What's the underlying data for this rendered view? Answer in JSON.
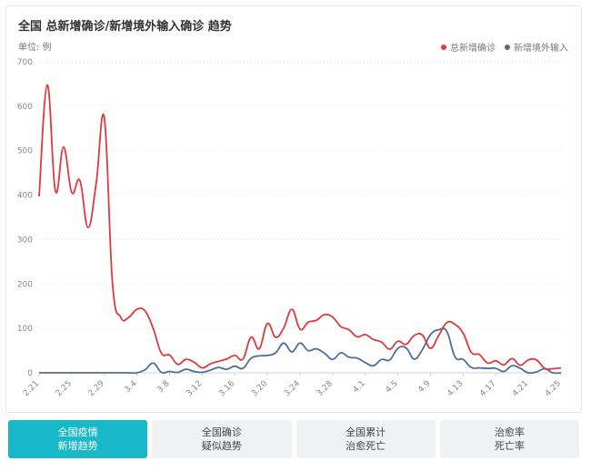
{
  "header": {
    "title": "全国 总新增确诊/新增境外输入确诊 趋势",
    "unit": "单位: 例"
  },
  "legend": [
    {
      "name": "总新增确诊",
      "color": "#e0393e"
    },
    {
      "name": "新增境外输入",
      "color": "#4e6e9a"
    }
  ],
  "tabs": [
    {
      "line1": "全国疫情",
      "line2": "新增趋势",
      "active": true
    },
    {
      "line1": "全国确诊",
      "line2": "疑似趋势",
      "active": false
    },
    {
      "line1": "全国累计",
      "line2": "治愈死亡",
      "active": false
    },
    {
      "line1": "治愈率",
      "line2": "死亡率",
      "active": false
    }
  ],
  "chart_data": {
    "type": "line",
    "x": [
      "2.21",
      "2.22",
      "2.23",
      "2.24",
      "2.25",
      "2.26",
      "2.27",
      "2.28",
      "2.29",
      "3.1",
      "3.2",
      "3.3",
      "3.4",
      "3.5",
      "3.6",
      "3.7",
      "3.8",
      "3.9",
      "3.10",
      "3.11",
      "3.12",
      "3.13",
      "3.14",
      "3.15",
      "3.16",
      "3.17",
      "3.18",
      "3.19",
      "3.20",
      "3.21",
      "3.22",
      "3.23",
      "3.24",
      "3.25",
      "3.26",
      "3.27",
      "3.28",
      "3.29",
      "3.30",
      "3.31",
      "4.1",
      "4.2",
      "4.3",
      "4.4",
      "4.5",
      "4.6",
      "4.7",
      "4.8",
      "4.9",
      "4.10",
      "4.11",
      "4.12",
      "4.13",
      "4.14",
      "4.15",
      "4.16",
      "4.17",
      "4.18",
      "4.19",
      "4.20",
      "4.21",
      "4.22",
      "4.23",
      "4.24",
      "4.25"
    ],
    "xticks": [
      "2.21",
      "2.25",
      "2.29",
      "3.4",
      "3.8",
      "3.12",
      "3.16",
      "3.20",
      "3.24",
      "3.28",
      "4.1",
      "4.5",
      "4.9",
      "4.13",
      "4.17",
      "4.21",
      "4.25"
    ],
    "ylim": [
      0,
      700
    ],
    "yticks": [
      0,
      100,
      200,
      300,
      400,
      500,
      600,
      700
    ],
    "grid": true,
    "legend_position": "top-right",
    "series": [
      {
        "name": "总新增确诊",
        "color": "#e0393e",
        "values": [
          397,
          648,
          409,
          508,
          406,
          433,
          327,
          427,
          573,
          202,
          125,
          125,
          143,
          139,
          99,
          44,
          40,
          19,
          30,
          24,
          11,
          20,
          26,
          31,
          39,
          31,
          80,
          54,
          111,
          80,
          101,
          143,
          98,
          114,
          118,
          131,
          125,
          104,
          97,
          81,
          86,
          75,
          69,
          53,
          71,
          64,
          84,
          85,
          55,
          84,
          113,
          109,
          89,
          46,
          41,
          22,
          27,
          18,
          32,
          17,
          29,
          29,
          10,
          9,
          11
        ]
      },
      {
        "name": "新增境外输入",
        "color": "#4e6e9a",
        "values": [
          0,
          0,
          0,
          0,
          0,
          0,
          0,
          0,
          0,
          0,
          0,
          0,
          0,
          7,
          22,
          1,
          3,
          1,
          8,
          3,
          1,
          6,
          12,
          8,
          15,
          10,
          33,
          38,
          39,
          45,
          67,
          47,
          67,
          50,
          54,
          44,
          30,
          45,
          35,
          33,
          23,
          16,
          30,
          29,
          55,
          56,
          31,
          52,
          86,
          97,
          93,
          36,
          30,
          12,
          11,
          10,
          10,
          3,
          16,
          10,
          0,
          2,
          9,
          0,
          0
        ]
      }
    ]
  }
}
